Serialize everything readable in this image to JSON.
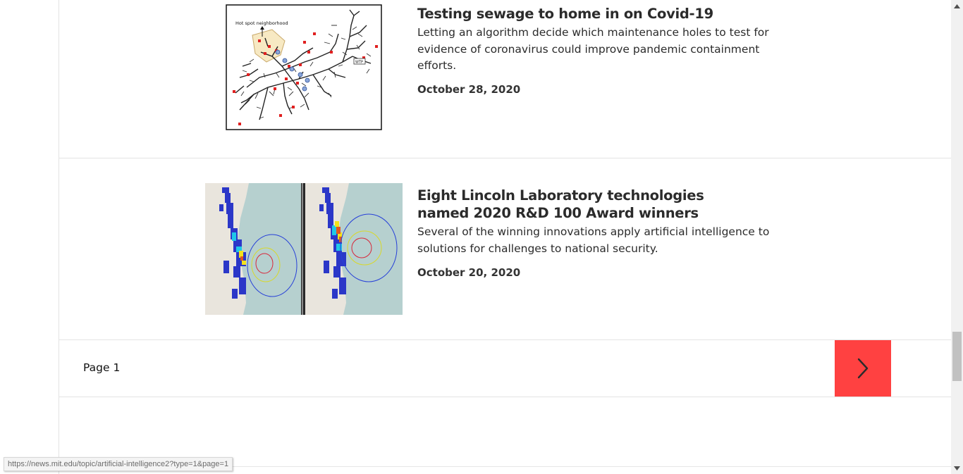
{
  "articles": [
    {
      "title": "Testing sewage to home in on Covid-19",
      "dek": "Letting an algorithm decide which maintenance holes to test for evidence of coronavirus could improve pandemic containment efforts.",
      "date": "October 28, 2020",
      "image": {
        "label": "Hot spot neighborhood",
        "plant_label": "WTP"
      }
    },
    {
      "title": "Eight Lincoln Laboratory technologies named 2020 R&D 100 Award winners",
      "dek": "Several of the winning innovations apply artificial intelligence to solutions for challenges to national security.",
      "date": "October 20, 2020"
    }
  ],
  "pager": {
    "label": "Page 1",
    "next_icon": "chevron-right-icon"
  },
  "status_bar": {
    "url": "https://news.mit.edu/topic/artificial-intelligence2?type=1&page=1"
  },
  "colors": {
    "accent": "#ff4141",
    "divider": "#e3e3e3",
    "text": "#2b2b2b"
  }
}
